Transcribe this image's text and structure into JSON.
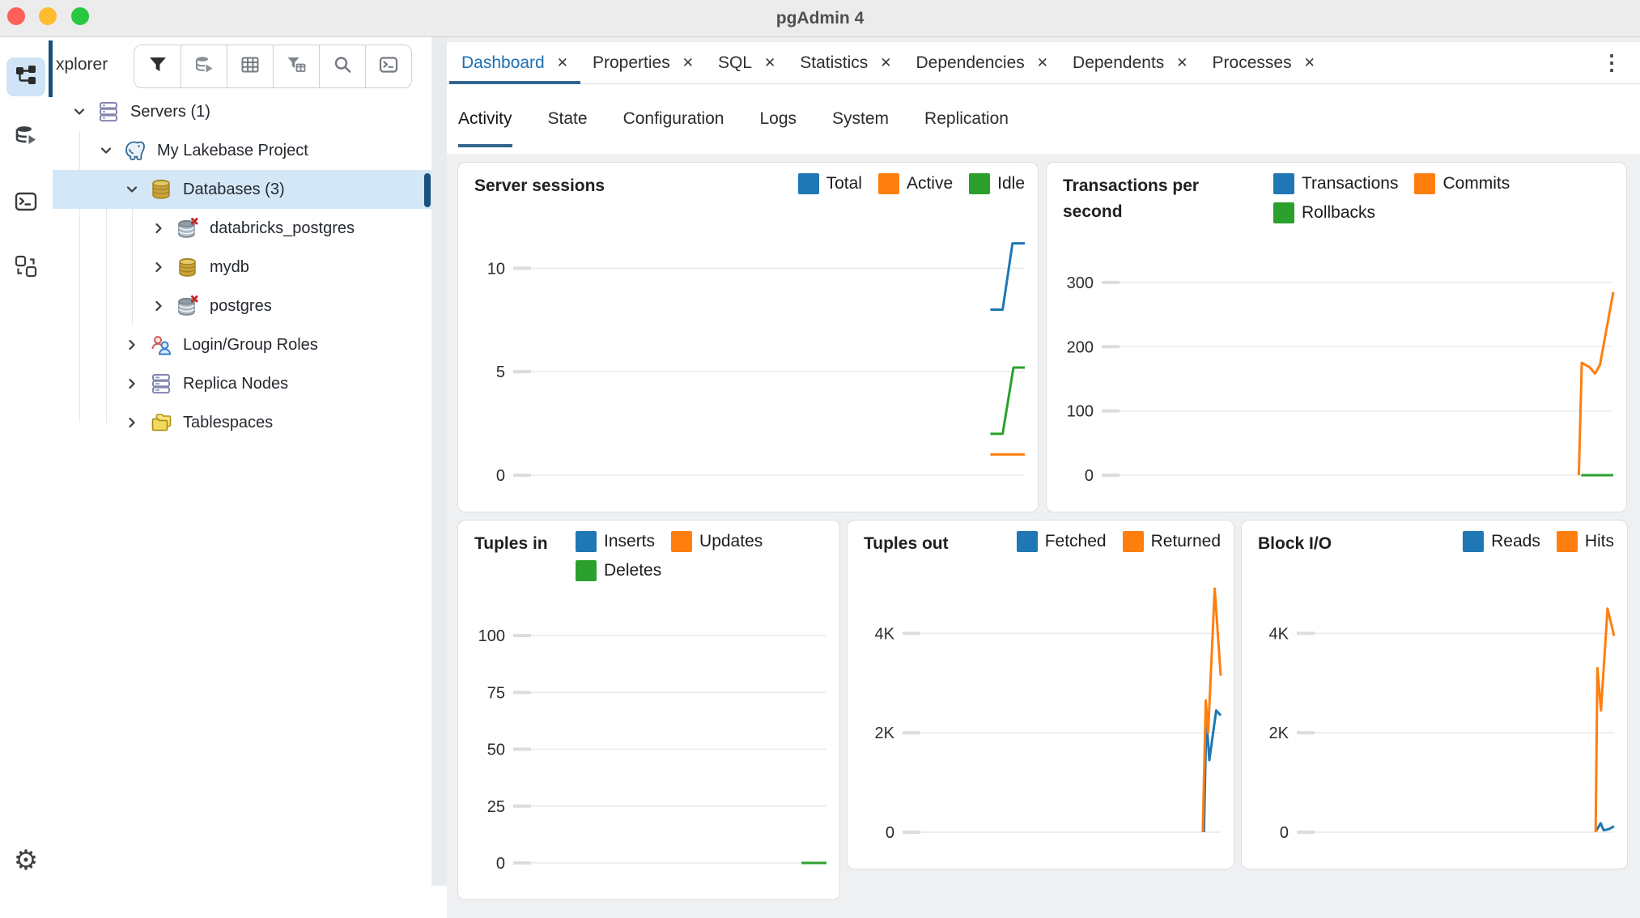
{
  "window": {
    "title": "pgAdmin 4"
  },
  "rail": {
    "items": [
      {
        "name": "object-explorer",
        "selected": true
      },
      {
        "name": "query-tool",
        "selected": false
      },
      {
        "name": "psql-tool",
        "selected": false
      },
      {
        "name": "schema-diff",
        "selected": false
      },
      {
        "name": "preferences",
        "selected": false
      }
    ]
  },
  "explorer": {
    "panel_title": "xplorer",
    "toolbar": [
      "filter",
      "connect-database",
      "grid-view",
      "filter-rows",
      "search-objects",
      "query-tool"
    ],
    "tree": [
      {
        "label": "Servers (1)",
        "level": 1,
        "expanded": true,
        "icon": "servers"
      },
      {
        "label": "My Lakebase Project",
        "level": 2,
        "expanded": true,
        "icon": "postgres-server"
      },
      {
        "label": "Databases (3)",
        "level": 3,
        "expanded": true,
        "icon": "databases-gold",
        "selected": true
      },
      {
        "label": "databricks_postgres",
        "level": 4,
        "expanded": false,
        "icon": "database-disconnected"
      },
      {
        "label": "mydb",
        "level": 4,
        "expanded": false,
        "icon": "database-gold"
      },
      {
        "label": "postgres",
        "level": 4,
        "expanded": false,
        "icon": "database-disconnected"
      },
      {
        "label": "Login/Group Roles",
        "level": 3,
        "expanded": false,
        "icon": "roles"
      },
      {
        "label": "Replica Nodes",
        "level": 3,
        "expanded": false,
        "icon": "replica-nodes"
      },
      {
        "label": "Tablespaces",
        "level": 3,
        "expanded": false,
        "icon": "tablespaces"
      }
    ]
  },
  "tabs": {
    "items": [
      {
        "label": "Dashboard",
        "active": true
      },
      {
        "label": "Properties",
        "active": false
      },
      {
        "label": "SQL",
        "active": false
      },
      {
        "label": "Statistics",
        "active": false
      },
      {
        "label": "Dependencies",
        "active": false
      },
      {
        "label": "Dependents",
        "active": false
      },
      {
        "label": "Processes",
        "active": false
      }
    ],
    "close_glyph": "✕",
    "overflow_menu": "⋮"
  },
  "subtabs": {
    "items": [
      {
        "label": "Activity",
        "active": true
      },
      {
        "label": "State",
        "active": false
      },
      {
        "label": "Configuration",
        "active": false
      },
      {
        "label": "Logs",
        "active": false
      },
      {
        "label": "System",
        "active": false
      },
      {
        "label": "Replication",
        "active": false
      }
    ]
  },
  "colors": {
    "blue": "#1f77b4",
    "orange": "#ff7f0e",
    "green": "#2ca02c",
    "accent": "#326690"
  },
  "chart_data": [
    {
      "type": "line",
      "title": "Server sessions",
      "ylim": [
        0,
        11.5
      ],
      "grid": true,
      "legend_position": "top-right",
      "yticks": [
        {
          "label": "10",
          "v": 10
        },
        {
          "label": "5",
          "v": 5
        },
        {
          "label": "0",
          "v": 0
        }
      ],
      "series": [
        {
          "name": "Total",
          "color": "#1f77b4",
          "points": [
            [
              0.93,
              8
            ],
            [
              0.955,
              8
            ],
            [
              0.975,
              11.2
            ],
            [
              1,
              11.2
            ]
          ]
        },
        {
          "name": "Active",
          "color": "#ff7f0e",
          "points": [
            [
              0.93,
              1
            ],
            [
              1,
              1
            ]
          ]
        },
        {
          "name": "Idle",
          "color": "#2ca02c",
          "points": [
            [
              0.93,
              2
            ],
            [
              0.955,
              2
            ],
            [
              0.977,
              5.2
            ],
            [
              1,
              5.2
            ]
          ]
        }
      ]
    },
    {
      "type": "line",
      "title": "Transactions per second",
      "ylim": [
        0,
        320
      ],
      "grid": true,
      "legend_position": "top-right",
      "yticks": [
        {
          "label": "300",
          "v": 300
        },
        {
          "label": "200",
          "v": 200
        },
        {
          "label": "100",
          "v": 100
        },
        {
          "label": "0",
          "v": 0
        }
      ],
      "series": [
        {
          "name": "Transactions",
          "color": "#1f77b4",
          "points": []
        },
        {
          "name": "Commits",
          "color": "#ff7f0e",
          "points": [
            [
              0.93,
              0
            ],
            [
              0.936,
              175
            ],
            [
              0.952,
              168
            ],
            [
              0.963,
              158
            ],
            [
              0.973,
              172
            ],
            [
              1,
              285
            ]
          ]
        },
        {
          "name": "Rollbacks",
          "color": "#2ca02c",
          "points": [
            [
              0.935,
              0
            ],
            [
              1,
              0
            ]
          ]
        }
      ]
    },
    {
      "type": "line",
      "title": "Tuples in",
      "ylim": [
        0,
        110
      ],
      "grid": true,
      "legend_position": "top-right",
      "yticks": [
        {
          "label": "100",
          "v": 100
        },
        {
          "label": "75",
          "v": 75
        },
        {
          "label": "50",
          "v": 50
        },
        {
          "label": "25",
          "v": 25
        },
        {
          "label": "0",
          "v": 0
        }
      ],
      "series": [
        {
          "name": "Inserts",
          "color": "#1f77b4",
          "points": []
        },
        {
          "name": "Updates",
          "color": "#ff7f0e",
          "points": []
        },
        {
          "name": "Deletes",
          "color": "#2ca02c",
          "points": [
            [
              0.915,
              0
            ],
            [
              1,
              0
            ]
          ]
        }
      ]
    },
    {
      "type": "line",
      "title": "Tuples out",
      "ylim": [
        0,
        5000
      ],
      "grid": true,
      "legend_position": "top-right",
      "yticks": [
        {
          "label": "4K",
          "v": 4000
        },
        {
          "label": "2K",
          "v": 2000
        },
        {
          "label": "0",
          "v": 0
        }
      ],
      "series": [
        {
          "name": "Fetched",
          "color": "#1f77b4",
          "points": [
            [
              0.944,
              0
            ],
            [
              0.952,
              2300
            ],
            [
              0.962,
              1450
            ],
            [
              0.985,
              2450
            ],
            [
              1,
              2350
            ]
          ]
        },
        {
          "name": "Returned",
          "color": "#ff7f0e",
          "points": [
            [
              0.94,
              0
            ],
            [
              0.95,
              2650
            ],
            [
              0.958,
              2000
            ],
            [
              0.98,
              4900
            ],
            [
              1,
              3150
            ]
          ]
        }
      ]
    },
    {
      "type": "line",
      "title": "Block I/O",
      "ylim": [
        0,
        5000
      ],
      "grid": true,
      "legend_position": "top-right",
      "yticks": [
        {
          "label": "4K",
          "v": 4000
        },
        {
          "label": "2K",
          "v": 2000
        },
        {
          "label": "0",
          "v": 0
        }
      ],
      "series": [
        {
          "name": "Reads",
          "color": "#1f77b4",
          "points": [
            [
              0.94,
              30
            ],
            [
              0.955,
              180
            ],
            [
              0.965,
              40
            ],
            [
              0.982,
              60
            ],
            [
              1,
              120
            ]
          ]
        },
        {
          "name": "Hits",
          "color": "#ff7f0e",
          "points": [
            [
              0.938,
              0
            ],
            [
              0.944,
              3300
            ],
            [
              0.956,
              2450
            ],
            [
              0.978,
              4500
            ],
            [
              1,
              3950
            ]
          ]
        }
      ]
    }
  ]
}
